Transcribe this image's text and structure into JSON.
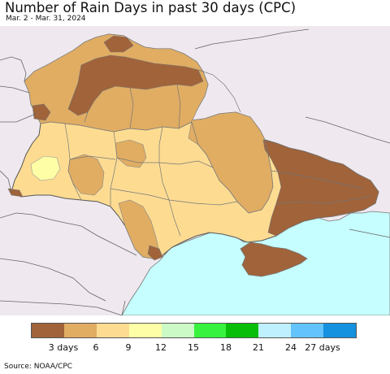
{
  "title": "Number of Rain Days in past 30 days (CPC)",
  "subtitle": "Mar. 2 - Mar. 31, 2024",
  "source": "Source: NOAA/CPC",
  "legend": {
    "colors": [
      "#a0633a",
      "#e0ad63",
      "#fddc92",
      "#fefea6",
      "#ccfac6",
      "#37f23e",
      "#09be09",
      "#bff0fe",
      "#63c3fc",
      "#1491df"
    ],
    "labels": [
      "3 days",
      "6",
      "9",
      "12",
      "15",
      "18",
      "21",
      "24",
      "27 days"
    ]
  },
  "map_colors": {
    "background": "#efe9ef",
    "sea": "#c6fdfe",
    "border": "#666666"
  }
}
